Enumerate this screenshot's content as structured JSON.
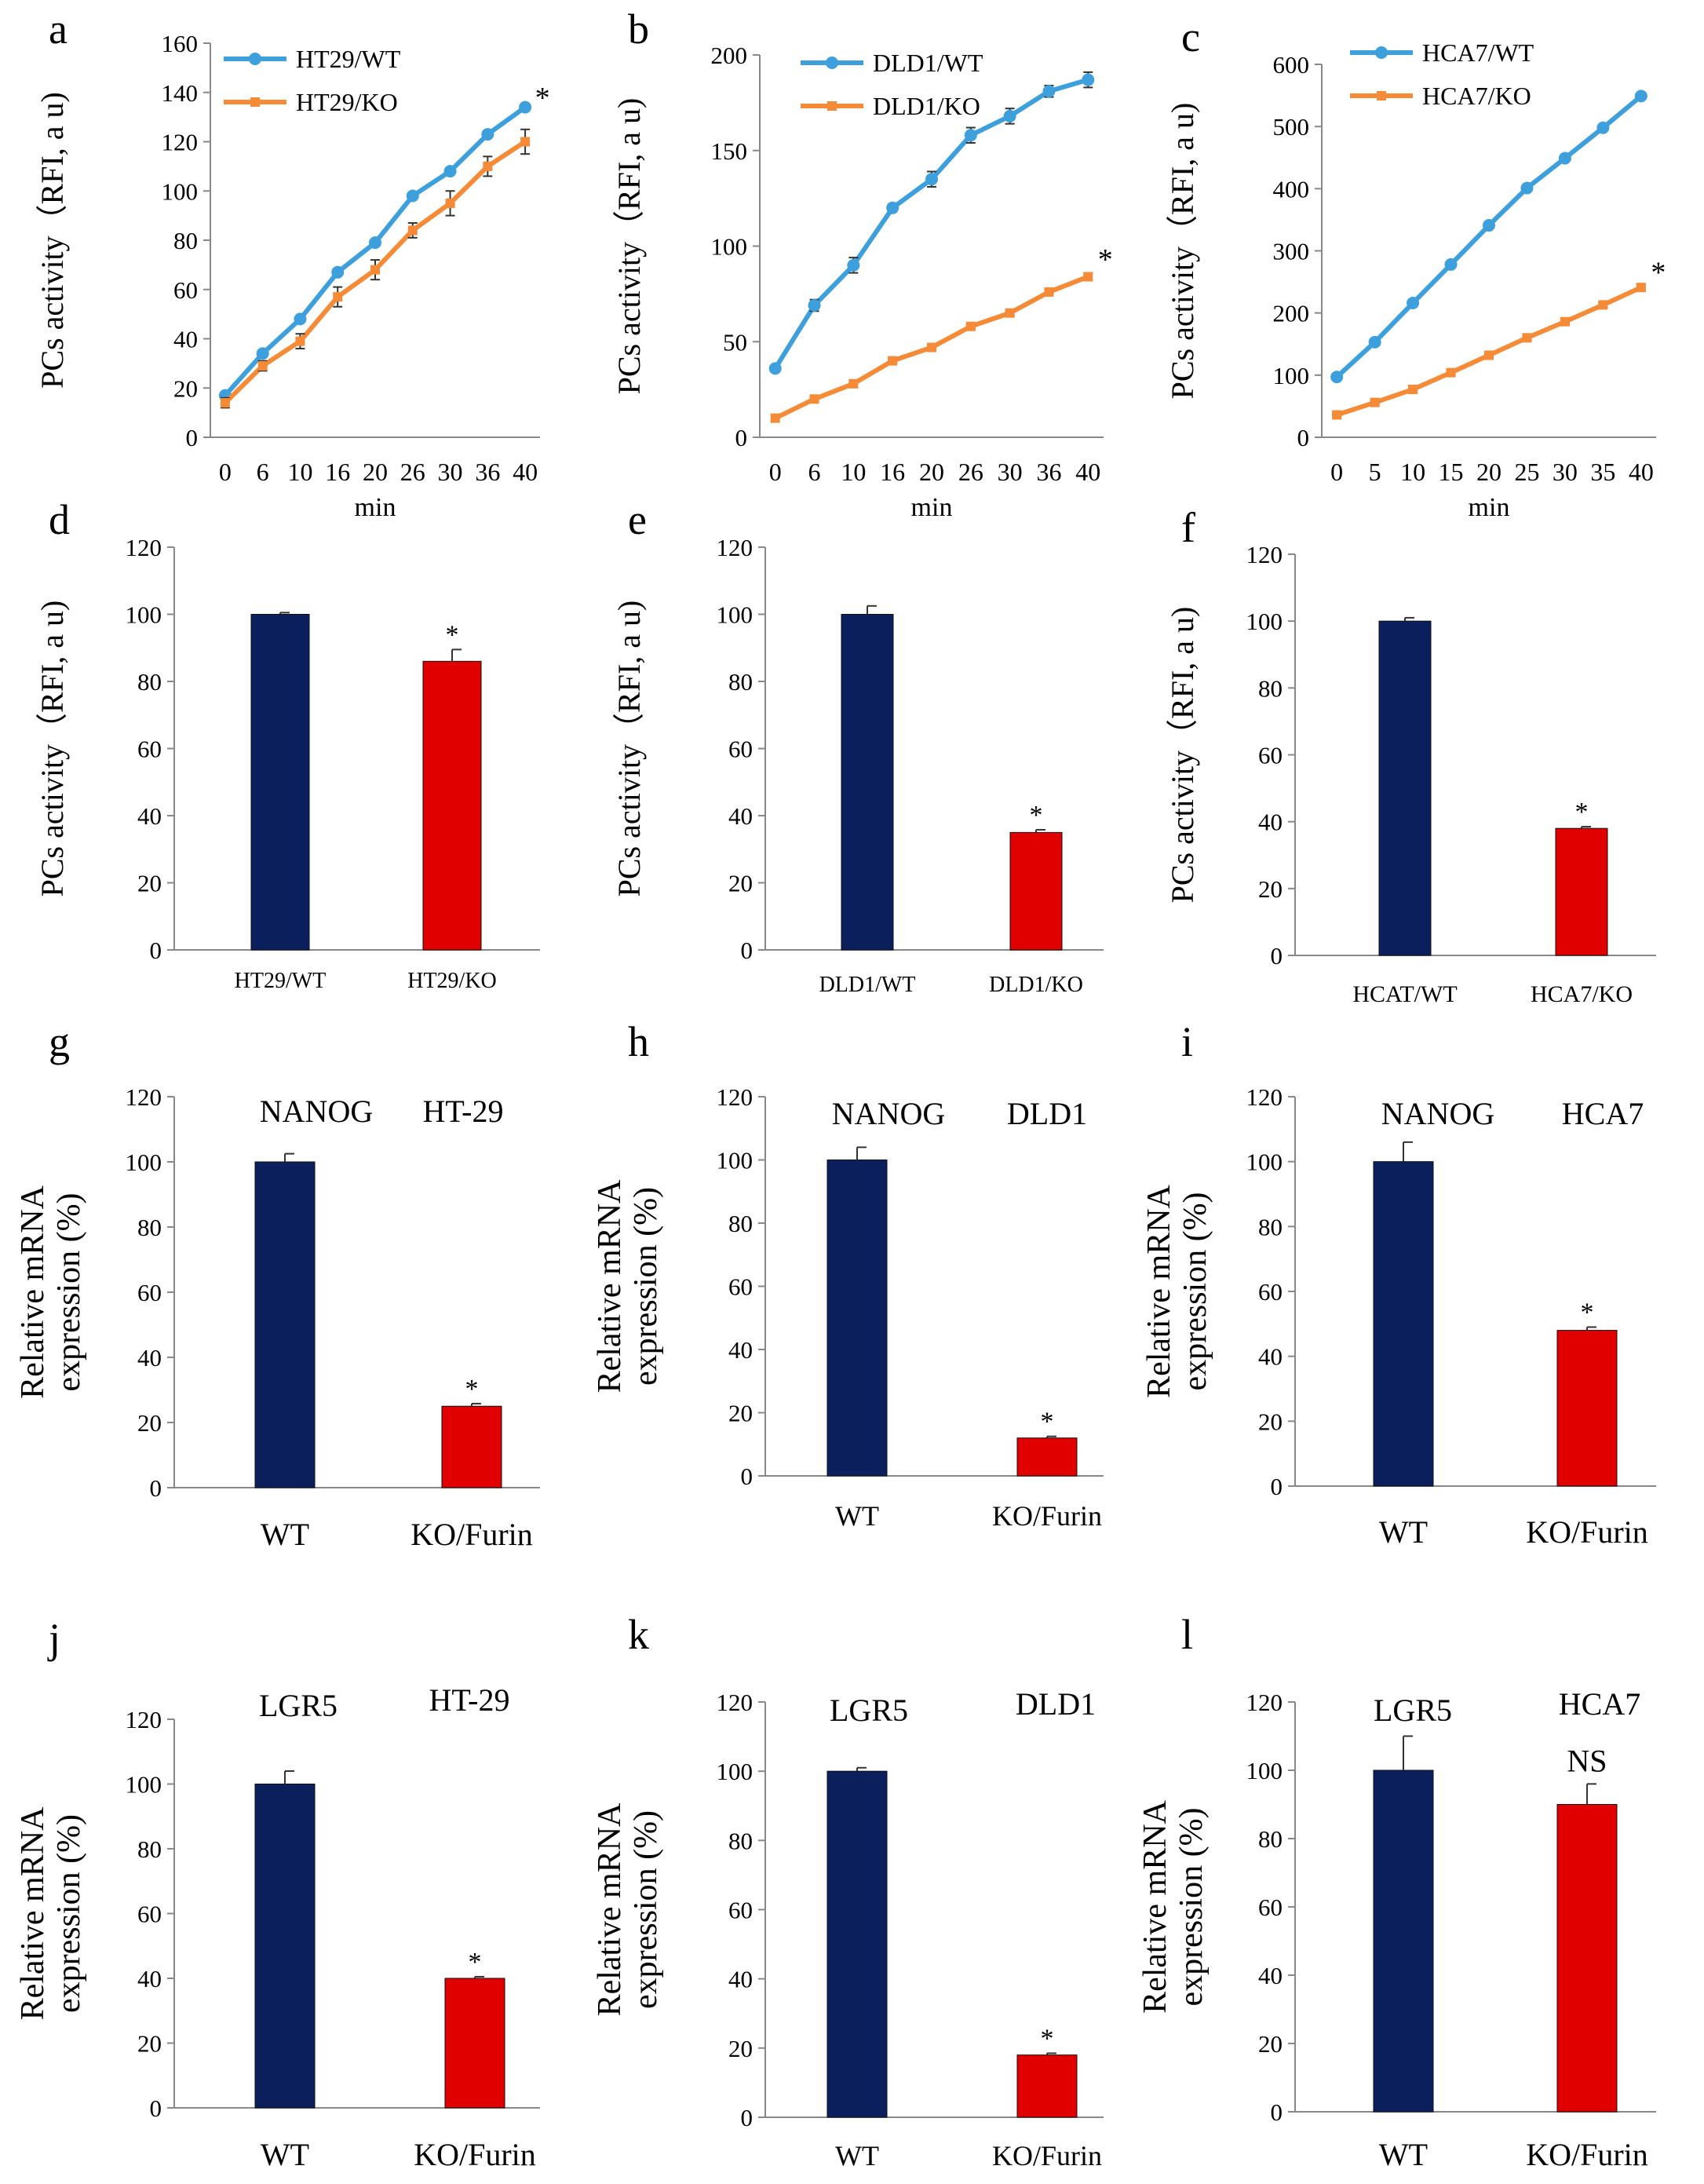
{
  "colors": {
    "wt_line": "#3d9fdc",
    "ko_line": "#f58a37",
    "wt_bar": "#0b1f5c",
    "ko_bar": "#e00000",
    "axis": "#888888",
    "text": "#000000"
  },
  "chart_data": [
    {
      "id": "a",
      "type": "line",
      "panel_label": "a",
      "categories": [
        "0",
        "6",
        "10",
        "16",
        "20",
        "26",
        "30",
        "36",
        "40"
      ],
      "ylim": [
        0,
        160
      ],
      "yticks": [
        0,
        20,
        40,
        60,
        80,
        100,
        120,
        140,
        160
      ],
      "xlabel": "min",
      "ylabel": "PCs activity（RFI, a u)",
      "series": [
        {
          "name": "HT29/WT",
          "color": "#3d9fdc",
          "marker": "circle",
          "values": [
            17,
            34,
            48,
            67,
            79,
            98,
            108,
            123,
            134
          ],
          "errors": [
            0,
            0,
            0,
            0,
            0,
            0,
            0,
            0,
            1
          ]
        },
        {
          "name": "HT29/KO",
          "color": "#f58a37",
          "marker": "cross",
          "values": [
            14,
            29,
            39,
            57,
            68,
            84,
            95,
            110,
            120
          ],
          "errors": [
            2,
            2,
            3,
            4,
            4,
            3,
            5,
            4,
            5
          ]
        }
      ],
      "annotations": [
        {
          "text": "*",
          "category": 8,
          "value": 137
        }
      ],
      "legend": "top-left"
    },
    {
      "id": "b",
      "type": "line",
      "panel_label": "b",
      "categories": [
        "0",
        "6",
        "10",
        "16",
        "20",
        "26",
        "30",
        "36",
        "40"
      ],
      "ylim": [
        0,
        200
      ],
      "yticks": [
        0,
        50,
        100,
        150,
        200
      ],
      "xlabel": "min",
      "ylabel": "PCs activity（RFI, a u)",
      "series": [
        {
          "name": "DLD1/WT",
          "color": "#3d9fdc",
          "marker": "circle",
          "values": [
            36,
            69,
            90,
            120,
            135,
            158,
            168,
            181,
            187
          ],
          "errors": [
            1,
            3,
            4,
            2,
            4,
            4,
            4,
            3,
            4
          ]
        },
        {
          "name": "DLD1/KO",
          "color": "#f58a37",
          "marker": "cross",
          "values": [
            10,
            20,
            28,
            40,
            47,
            58,
            65,
            76,
            84
          ],
          "errors": [
            0,
            0,
            0,
            1,
            1,
            1,
            1,
            1,
            2
          ]
        }
      ],
      "annotations": [
        {
          "text": "*",
          "category": 8,
          "value": 92
        }
      ],
      "legend": "top-left"
    },
    {
      "id": "c",
      "type": "line",
      "panel_label": "c",
      "categories": [
        "0",
        "5",
        "10",
        "15",
        "20",
        "25",
        "30",
        "35",
        "40"
      ],
      "ylim": [
        0,
        600
      ],
      "yticks": [
        0,
        100,
        200,
        300,
        400,
        500,
        600
      ],
      "xlabel": "min",
      "ylabel": "PCs activity（RFI, a u)",
      "series": [
        {
          "name": "HCA7/WT",
          "color": "#3d9fdc",
          "marker": "circle",
          "values": [
            97,
            153,
            216,
            278,
            341,
            401,
            449,
            498,
            549
          ],
          "errors": [
            3,
            3,
            4,
            4,
            4,
            5,
            5,
            4,
            5
          ]
        },
        {
          "name": "HCA7/KO",
          "color": "#f58a37",
          "marker": "cross",
          "values": [
            36,
            56,
            77,
            104,
            132,
            160,
            186,
            213,
            241
          ],
          "errors": [
            2,
            2,
            2,
            3,
            3,
            3,
            3,
            4,
            5
          ]
        }
      ],
      "annotations": [
        {
          "text": "*",
          "category": 8,
          "value": 262
        }
      ],
      "legend": "top-left"
    },
    {
      "id": "d",
      "type": "bar",
      "panel_label": "d",
      "categories": [
        "HT29/WT",
        "HT29/KO"
      ],
      "values": [
        100,
        86
      ],
      "errors": [
        0.5,
        3.5
      ],
      "colors": [
        "#0b1f5c",
        "#e00000"
      ],
      "ylim": [
        0,
        120
      ],
      "yticks": [
        0,
        20,
        40,
        60,
        80,
        100,
        120
      ],
      "ylabel": "PCs activity（RFI, a u)",
      "annotations": [
        {
          "text": "*",
          "category": 1
        }
      ],
      "header": []
    },
    {
      "id": "e",
      "type": "bar",
      "panel_label": "e",
      "categories": [
        "DLD1/WT",
        "DLD1/KO"
      ],
      "values": [
        100,
        35
      ],
      "errors": [
        2.5,
        0.8
      ],
      "colors": [
        "#0b1f5c",
        "#e00000"
      ],
      "ylim": [
        0,
        120
      ],
      "yticks": [
        0,
        20,
        40,
        60,
        80,
        100,
        120
      ],
      "ylabel": "PCs activity（RFI, a u)",
      "annotations": [
        {
          "text": "*",
          "category": 1
        }
      ],
      "header": []
    },
    {
      "id": "f",
      "type": "bar",
      "panel_label": "f",
      "categories": [
        "HCAT/WT",
        "HCA7/KO"
      ],
      "values": [
        100,
        38
      ],
      "errors": [
        1,
        0.5
      ],
      "colors": [
        "#0b1f5c",
        "#e00000"
      ],
      "ylim": [
        0,
        120
      ],
      "yticks": [
        0,
        20,
        40,
        60,
        80,
        100,
        120
      ],
      "ylabel": "PCs activity（RFI, a u)",
      "annotations": [
        {
          "text": "*",
          "category": 1
        }
      ],
      "header": []
    },
    {
      "id": "g",
      "type": "bar",
      "panel_label": "g",
      "categories": [
        "WT",
        "KO/Furin"
      ],
      "values": [
        100,
        25
      ],
      "errors": [
        2.5,
        0.8
      ],
      "colors": [
        "#0b1f5c",
        "#e00000"
      ],
      "ylim": [
        0,
        120
      ],
      "yticks": [
        0,
        20,
        40,
        60,
        80,
        100,
        120
      ],
      "ylabel": "Relative mRNA expression (%)",
      "annotations": [
        {
          "text": "*",
          "category": 1
        }
      ],
      "header": [
        "NANOG",
        "HT-29"
      ]
    },
    {
      "id": "h",
      "type": "bar",
      "panel_label": "h",
      "categories": [
        "WT",
        "KO/Furin"
      ],
      "values": [
        100,
        12
      ],
      "errors": [
        4,
        0.5
      ],
      "colors": [
        "#0b1f5c",
        "#e00000"
      ],
      "ylim": [
        0,
        120
      ],
      "yticks": [
        0,
        20,
        40,
        60,
        80,
        100,
        120
      ],
      "ylabel": "Relative mRNA expression (%)",
      "annotations": [
        {
          "text": "*",
          "category": 1
        }
      ],
      "header": [
        "NANOG",
        "DLD1"
      ]
    },
    {
      "id": "i",
      "type": "bar",
      "panel_label": "i",
      "categories": [
        "WT",
        "KO/Furin"
      ],
      "values": [
        100,
        48
      ],
      "errors": [
        6,
        1
      ],
      "colors": [
        "#0b1f5c",
        "#e00000"
      ],
      "ylim": [
        0,
        120
      ],
      "yticks": [
        0,
        20,
        40,
        60,
        80,
        100,
        120
      ],
      "ylabel": "Relative mRNA expression (%)",
      "annotations": [
        {
          "text": "*",
          "category": 1
        }
      ],
      "header": [
        "NANOG",
        "HCA7"
      ]
    },
    {
      "id": "j",
      "type": "bar",
      "panel_label": "j",
      "categories": [
        "WT",
        "KO/Furin"
      ],
      "values": [
        100,
        40
      ],
      "errors": [
        4,
        0.5
      ],
      "colors": [
        "#0b1f5c",
        "#e00000"
      ],
      "ylim": [
        0,
        120
      ],
      "yticks": [
        0,
        20,
        40,
        60,
        80,
        100,
        120
      ],
      "ylabel": "Relative mRNA expression (%)",
      "annotations": [
        {
          "text": "*",
          "category": 1
        }
      ],
      "header": [
        "LGR5",
        "HT-29"
      ]
    },
    {
      "id": "k",
      "type": "bar",
      "panel_label": "k",
      "categories": [
        "WT",
        "KO/Furin"
      ],
      "values": [
        100,
        18
      ],
      "errors": [
        1,
        0.5
      ],
      "colors": [
        "#0b1f5c",
        "#e00000"
      ],
      "ylim": [
        0,
        120
      ],
      "yticks": [
        0,
        20,
        40,
        60,
        80,
        100,
        120
      ],
      "ylabel": "Relative mRNA expression (%)",
      "annotations": [
        {
          "text": "*",
          "category": 1
        }
      ],
      "header": [
        "LGR5",
        "DLD1"
      ]
    },
    {
      "id": "l",
      "type": "bar",
      "panel_label": "l",
      "categories": [
        "WT",
        "KO/Furin"
      ],
      "values": [
        100,
        90
      ],
      "errors": [
        10,
        6
      ],
      "colors": [
        "#0b1f5c",
        "#e00000"
      ],
      "ylim": [
        0,
        120
      ],
      "yticks": [
        0,
        20,
        40,
        60,
        80,
        100,
        120
      ],
      "ylabel": "Relative mRNA expression (%)",
      "annotations": [
        {
          "text": "NS",
          "category": 1
        }
      ],
      "header": [
        "LGR5",
        "HCA7"
      ]
    }
  ]
}
